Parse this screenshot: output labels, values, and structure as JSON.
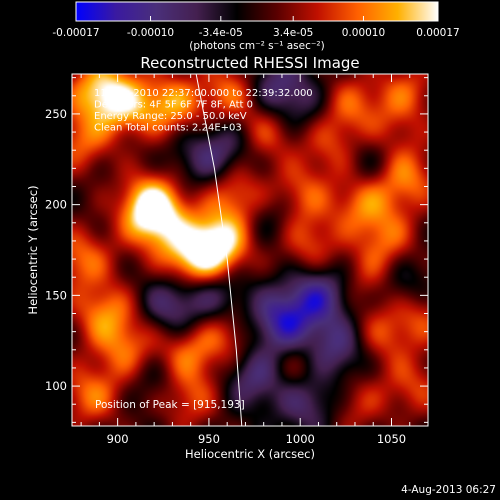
{
  "chart_data": {
    "type": "heatmap",
    "title": "Reconstructed RHESSI Image",
    "xlabel": "Heliocentric X (arcsec)",
    "ylabel": "Heliocentric Y (arcsec)",
    "xlim": [
      875,
      1070
    ],
    "ylim": [
      78,
      272
    ],
    "x_ticks": [
      900,
      950,
      1000,
      1050
    ],
    "y_ticks": [
      100,
      150,
      200,
      250
    ],
    "colorbar": {
      "range": [
        -0.00017,
        0.00017
      ],
      "tick_values": [
        -0.00017,
        -0.0001,
        -3.4e-05,
        3.4e-05,
        0.0001,
        0.00017
      ],
      "tick_labels": [
        "-0.00017",
        "-0.00010",
        "-3.4e-05",
        "3.4e-05",
        "0.00010",
        "0.00017"
      ],
      "units": "(photons cm⁻² s⁻¹ asec⁻²)",
      "colormap": [
        "#0000ff",
        "#3a1aa0",
        "#4a2f7a",
        "#442050",
        "#000000",
        "#5a0000",
        "#c01000",
        "#ff6000",
        "#ffb000",
        "#ffffff"
      ]
    },
    "info_lines": [
      "11-Dec-2010 22:37:00.000 to 22:39:32.000",
      "Detectors: 4F 5F 6F 7F 8F, Att 0",
      "Energy Range: 25.0 - 50.0 keV",
      "Clean     Total counts: 2.24E+03"
    ],
    "peak_label": "Position of Peak = [915,193]",
    "peak": [
      915,
      193
    ],
    "sources": [
      {
        "x": 955,
        "y": 178,
        "amp": 1.0
      },
      {
        "x": 940,
        "y": 170,
        "amp": 0.7
      },
      {
        "x": 918,
        "y": 200,
        "amp": 0.85
      },
      {
        "x": 922,
        "y": 190,
        "amp": 0.6
      },
      {
        "x": 890,
        "y": 263,
        "amp": 0.75
      },
      {
        "x": 905,
        "y": 255,
        "amp": 0.6
      },
      {
        "x": 930,
        "y": 255,
        "amp": 0.65
      },
      {
        "x": 962,
        "y": 262,
        "amp": 0.55
      },
      {
        "x": 982,
        "y": 240,
        "amp": 0.45
      },
      {
        "x": 965,
        "y": 205,
        "amp": 0.55
      },
      {
        "x": 880,
        "y": 235,
        "amp": 0.5
      },
      {
        "x": 880,
        "y": 170,
        "amp": 0.55
      },
      {
        "x": 893,
        "y": 140,
        "amp": 0.6
      },
      {
        "x": 905,
        "y": 120,
        "amp": 0.5
      },
      {
        "x": 885,
        "y": 95,
        "amp": 0.55
      },
      {
        "x": 937,
        "y": 117,
        "amp": 0.55
      },
      {
        "x": 938,
        "y": 94,
        "amp": 0.5
      },
      {
        "x": 960,
        "y": 128,
        "amp": 0.45
      },
      {
        "x": 1000,
        "y": 205,
        "amp": 0.5
      },
      {
        "x": 1005,
        "y": 178,
        "amp": 0.45
      },
      {
        "x": 1035,
        "y": 200,
        "amp": 0.55
      },
      {
        "x": 1058,
        "y": 215,
        "amp": 0.6
      },
      {
        "x": 1048,
        "y": 180,
        "amp": 0.45
      },
      {
        "x": 1040,
        "y": 158,
        "amp": 0.4
      },
      {
        "x": 1065,
        "y": 140,
        "amp": 0.45
      },
      {
        "x": 1045,
        "y": 128,
        "amp": 0.4
      },
      {
        "x": 1028,
        "y": 255,
        "amp": 0.45
      },
      {
        "x": 1058,
        "y": 262,
        "amp": 0.45
      },
      {
        "x": 1018,
        "y": 232,
        "amp": 0.4
      },
      {
        "x": 1062,
        "y": 100,
        "amp": 0.4
      },
      {
        "x": 1030,
        "y": 90,
        "amp": 0.35
      },
      {
        "x": 1000,
        "y": 110,
        "amp": 0.35
      },
      {
        "x": 1050,
        "y": 238,
        "amp": 0.3
      },
      {
        "x": 985,
        "y": 265,
        "amp": -0.45
      },
      {
        "x": 960,
        "y": 232,
        "amp": -0.35
      },
      {
        "x": 1010,
        "y": 150,
        "amp": -0.65
      },
      {
        "x": 990,
        "y": 135,
        "amp": -0.75
      },
      {
        "x": 1020,
        "y": 120,
        "amp": -0.55
      },
      {
        "x": 975,
        "y": 105,
        "amp": -0.5
      },
      {
        "x": 1005,
        "y": 92,
        "amp": -0.5
      },
      {
        "x": 955,
        "y": 150,
        "amp": -0.4
      },
      {
        "x": 930,
        "y": 145,
        "amp": -0.5
      },
      {
        "x": 925,
        "y": 105,
        "amp": -0.35
      },
      {
        "x": 1040,
        "y": 225,
        "amp": -0.35
      },
      {
        "x": 1055,
        "y": 155,
        "amp": -0.45
      },
      {
        "x": 1000,
        "y": 255,
        "amp": -0.3
      },
      {
        "x": 945,
        "y": 225,
        "amp": -0.3
      },
      {
        "x": 985,
        "y": 195,
        "amp": -0.3
      }
    ],
    "limb_points": [
      [
        943,
        272
      ],
      [
        953,
        220
      ],
      [
        960,
        170
      ],
      [
        965,
        120
      ],
      [
        968,
        78
      ]
    ]
  },
  "footer": {
    "date": "4-Aug-2013 06:27"
  }
}
